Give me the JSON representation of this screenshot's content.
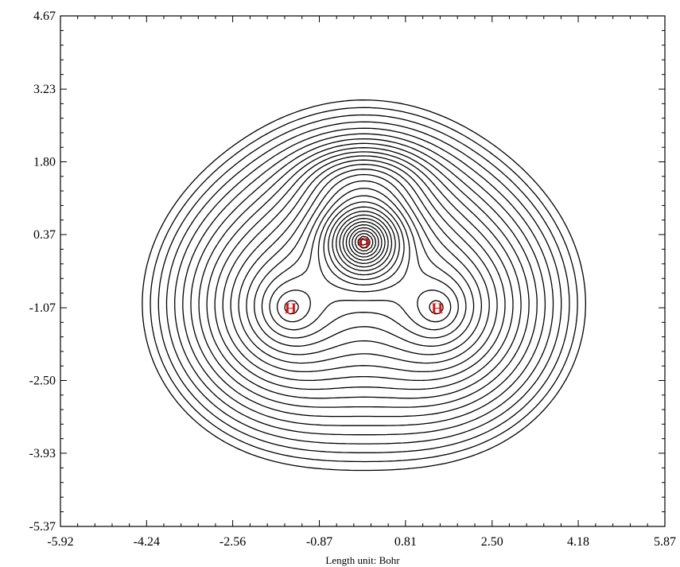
{
  "chart_data": {
    "type": "contour",
    "title": "",
    "xlabel": "Length unit: Bohr",
    "ylabel": "",
    "xlim": [
      -5.92,
      5.87
    ],
    "ylim": [
      -5.37,
      4.67
    ],
    "x_ticks": [
      "-5.92",
      "-4.24",
      "-2.56",
      "-0.87",
      "0.81",
      "2.50",
      "4.18",
      "5.87"
    ],
    "y_ticks": [
      "4.67",
      "3.23",
      "1.80",
      "0.37",
      "-1.07",
      "-2.50",
      "-3.93",
      "-5.37"
    ],
    "grid": false,
    "atoms": [
      {
        "label": "O",
        "x": 0.0,
        "y": 0.22
      },
      {
        "label": "H",
        "x": -1.43,
        "y": -1.07
      },
      {
        "label": "H",
        "x": 1.43,
        "y": -1.07
      }
    ],
    "contour_levels": 30,
    "line_color": "#000000",
    "atom_label_color": "#e01010"
  }
}
